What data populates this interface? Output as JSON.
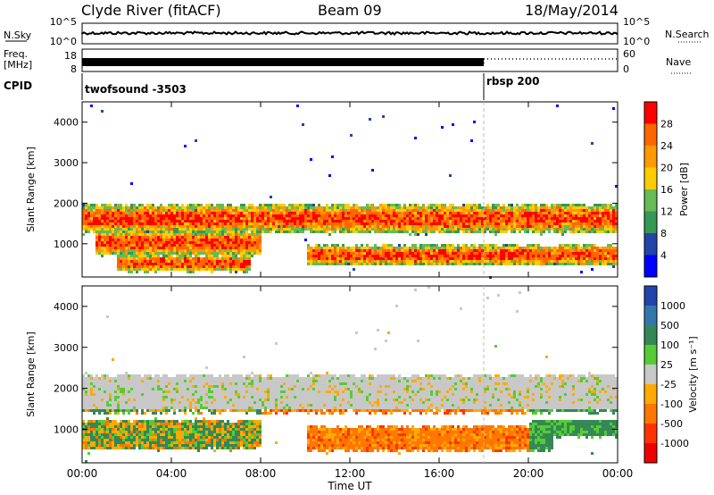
{
  "header": {
    "site": "Clyde River (fitACF)",
    "beam": "Beam 09",
    "date": "18/May/2014"
  },
  "nsky_panel": {
    "label": "N.Sky",
    "right_label": "N.Search",
    "left_ticks": [
      "10^5",
      "10^0"
    ],
    "right_ticks": [
      "10^5",
      "10^0"
    ]
  },
  "freq_panel": {
    "label_line1": "Freq.",
    "label_line2": "[MHz]",
    "left_ticks": [
      "18",
      "8"
    ],
    "right_label": "Nave",
    "right_ticks": [
      "60",
      "0"
    ]
  },
  "cpid_panel": {
    "label": "CPID",
    "segments": [
      {
        "name": "twofsound -3503",
        "start_hour": 0
      },
      {
        "name": "rbsp 200",
        "start_hour": 18
      }
    ]
  },
  "chart_data": [
    {
      "type": "heatmap",
      "panel": "power",
      "ylabel": "Slant Range [km]",
      "colorbar_label": "Power [dB]",
      "colorbar_ticks": [
        "28",
        "24",
        "20",
        "16",
        "12",
        "8",
        "4"
      ],
      "colors": [
        "#ff0000",
        "#ff6600",
        "#ff9900",
        "#ffcc00",
        "#66bb55",
        "#339955",
        "#2244aa",
        "#0000ff"
      ],
      "yticks": [
        "4000",
        "3000",
        "2000",
        "1000"
      ],
      "ylim": [
        180,
        4500
      ],
      "xlim": [
        0,
        24
      ],
      "bands": [
        {
          "start_hour": 0,
          "end_hour": 24,
          "center_km": 1650,
          "width_km": 350
        },
        {
          "start_hour": 0.5,
          "end_hour": 8,
          "center_km": 1050,
          "width_km": 300
        },
        {
          "start_hour": 1.5,
          "end_hour": 7.5,
          "center_km": 550,
          "width_km": 200
        },
        {
          "start_hour": 10,
          "end_hour": 24,
          "center_km": 750,
          "width_km": 250
        }
      ]
    },
    {
      "type": "heatmap",
      "panel": "velocity",
      "ylabel": "Slant Range [km]",
      "colorbar_label": "Velocity [m s⁻¹]",
      "colorbar_ticks": [
        "1000",
        "500",
        "100",
        "25",
        "-25",
        "-100",
        "-500",
        "-1000"
      ],
      "colors": [
        "#2244aa",
        "#3377aa",
        "#338855",
        "#55cc33",
        "#c8c8c8",
        "#ffaa00",
        "#ff7700",
        "#ff3300",
        "#ee0000"
      ],
      "yticks": [
        "4000",
        "3000",
        "2000",
        "1000"
      ],
      "ylim": [
        180,
        4500
      ],
      "xlim": [
        0,
        24
      ],
      "bands": [
        {
          "start_hour": 0,
          "end_hour": 24,
          "center_km": 1900,
          "width_km": 450
        },
        {
          "start_hour": 0,
          "end_hour": 8,
          "center_km": 900,
          "width_km": 350
        },
        {
          "start_hour": 10,
          "end_hour": 21,
          "center_km": 800,
          "width_km": 300
        },
        {
          "start_hour": 20,
          "end_hour": 24,
          "center_km": 1050,
          "width_km": 200
        }
      ]
    }
  ],
  "x_axis": {
    "ticks": [
      "00:00",
      "04:00",
      "08:00",
      "12:00",
      "16:00",
      "20:00",
      "00:00"
    ],
    "label": "Time UT"
  }
}
